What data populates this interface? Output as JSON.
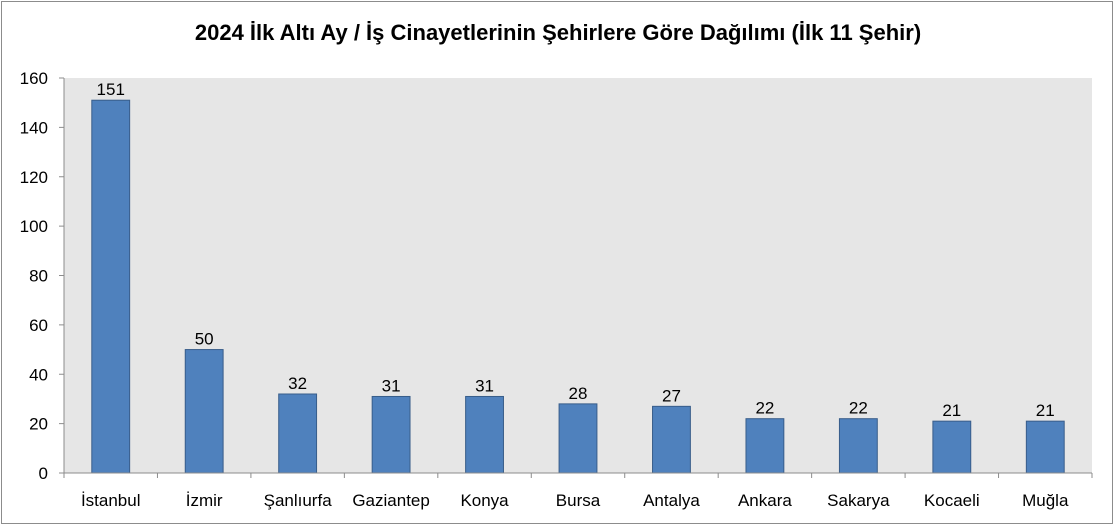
{
  "chart_data": {
    "type": "bar",
    "title": "2024 İlk Altı Ay / İş Cinayetlerinin Şehirlere Göre Dağılımı (İlk 11 Şehir)",
    "categories": [
      "İstanbul",
      "İzmir",
      "Şanlıurfa",
      "Gaziantep",
      "Konya",
      "Bursa",
      "Antalya",
      "Ankara",
      "Sakarya",
      "Kocaeli",
      "Muğla"
    ],
    "values": [
      151,
      50,
      32,
      31,
      31,
      28,
      27,
      22,
      22,
      21,
      21
    ],
    "ylim": [
      0,
      160
    ],
    "yticks": [
      0,
      20,
      40,
      60,
      80,
      100,
      120,
      140,
      160
    ],
    "xlabel": "",
    "ylabel": "",
    "grid": false,
    "legend": "none",
    "colors": {
      "bar": "#4f81bd",
      "bar_edge": "#385d8a",
      "plot_background": "#e6e6e6",
      "axis": "#8c8c8c"
    }
  }
}
